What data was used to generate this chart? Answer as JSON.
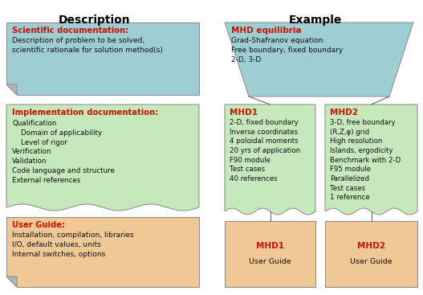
{
  "title_desc": "Description",
  "title_ex": "Example",
  "box_blue": "#9ecdd4",
  "box_green": "#c5e8bc",
  "box_orange": "#f0c896",
  "fold_gray": "#b0b8b8",
  "text_red": "#cc1100",
  "text_dark": "#111111",
  "border_color": "#888888",
  "line_color": "#666666",
  "sci_doc_title": "Scientific documentation:",
  "sci_doc_body": "Description of problem to be solved,\nscientific rationale for solution method(s)",
  "impl_doc_title": "Implementation documentation:",
  "impl_doc_body": "Qualification\n    Domain of applicability\n    Level of rigor\nVerification\nValidation\nCode language and structure\nExternal references",
  "user_guide_title": "User Guide:",
  "user_guide_body": "Installation, compilation, libraries\nI/O, default values, units\nInternal switches, options",
  "mhd_eq_title": "MHD equilibria",
  "mhd_eq_body": "Grad-Shafranov equation\nFree boundary, fixed boundary\n2-D, 3-D",
  "mhd1_title": "MHD1",
  "mhd1_body": "2-D, fixed boundary\nInverse coordinates\n4 poloidal moments\n20 yrs of application\nF90 module\nTest cases\n40 references",
  "mhd2_title": "MHD2",
  "mhd2_body": "3-D, free boundary\n(R,Z,φ) grid\nHigh resolution\nIslands, ergodicity\nBenchmark with 2-D\nF95 module\nParallelized\nTest cases\n1 reference",
  "mhd1_ug_title": "MHD1",
  "mhd1_ug_body": "User Guide",
  "mhd2_ug_title": "MHD2",
  "mhd2_ug_body": "User Guide",
  "figw": 5.27,
  "figh": 3.67,
  "dpi": 100
}
